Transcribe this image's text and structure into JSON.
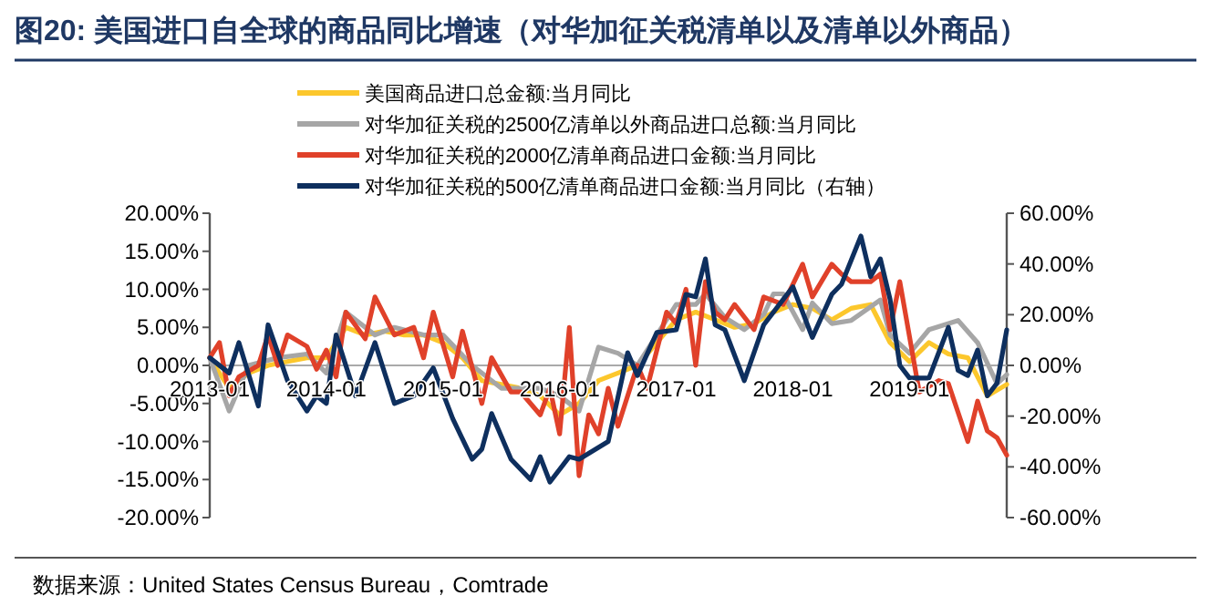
{
  "chart_data": {
    "type": "line",
    "title": "图20: 美国进口自全球的商品同比增速（对华加征关税清单以及清单以外商品）",
    "annotations": [
      "数据来源：United States Census Bureau，Comtrade"
    ],
    "xlim": [
      "2013-01",
      "2019-11"
    ],
    "xticks": [
      "2013-01",
      "2014-01",
      "2015-01",
      "2016-01",
      "2017-01",
      "2018-01",
      "2019-01"
    ],
    "ylim": [
      -20,
      20
    ],
    "yticks": [
      {
        "value": 20,
        "label": "20.00%"
      },
      {
        "value": 15,
        "label": "15.00%"
      },
      {
        "value": 10,
        "label": "10.00%"
      },
      {
        "value": 5,
        "label": "5.00%"
      },
      {
        "value": 0,
        "label": "0.00%"
      },
      {
        "value": -5,
        "label": "-5.00%"
      },
      {
        "value": -10,
        "label": "-10.00%"
      },
      {
        "value": -15,
        "label": "-15.00%"
      },
      {
        "value": -20,
        "label": "-20.00%"
      }
    ],
    "y2lim": [
      -60,
      60
    ],
    "y2ticks": [
      {
        "value": 60,
        "label": "60.00%"
      },
      {
        "value": 40,
        "label": "40.00%"
      },
      {
        "value": 20,
        "label": "20.00%"
      },
      {
        "value": 0,
        "label": "0.00%"
      },
      {
        "value": -20,
        "label": "-20.00%"
      },
      {
        "value": -40,
        "label": "-40.00%"
      },
      {
        "value": -60,
        "label": "-60.00%"
      }
    ],
    "grid": false,
    "legend": "top",
    "line_style": "solid",
    "marker": "none",
    "series": [
      {
        "name": "美国商品进口总金额:当月同比",
        "color": "#fcc72c",
        "x": [
          "2013-01",
          "2013-03",
          "2013-05",
          "2013-07",
          "2013-09",
          "2013-11",
          "2014-01",
          "2014-03",
          "2014-05",
          "2014-07",
          "2014-09",
          "2014-11",
          "2015-01",
          "2015-03",
          "2015-05",
          "2015-07",
          "2015-09",
          "2015-11",
          "2016-01",
          "2016-03",
          "2016-05",
          "2016-07",
          "2016-09",
          "2016-11",
          "2017-01",
          "2017-03",
          "2017-05",
          "2017-07",
          "2017-09",
          "2017-11",
          "2018-01",
          "2018-03",
          "2018-05",
          "2018-07",
          "2018-09",
          "2018-11",
          "2019-01",
          "2019-03",
          "2019-05",
          "2019-07",
          "2019-09",
          "2019-11"
        ],
        "values": [
          1,
          -3,
          -1,
          0,
          0.5,
          1,
          1,
          5,
          4,
          4.5,
          4,
          4,
          3,
          1,
          -2,
          -2.5,
          -3,
          -4,
          -6.5,
          -5,
          -2,
          -1,
          0,
          3,
          6,
          7,
          6,
          5,
          5.5,
          7,
          8,
          7.5,
          6,
          7.5,
          8,
          3,
          0.5,
          3,
          1.5,
          1,
          -4,
          -2.5
        ]
      },
      {
        "name": "对华加征关税的2500亿清单以外商品进口总额:当月同比",
        "color": "#a6a6a6",
        "x": [
          "2013-01",
          "2013-03",
          "2013-05",
          "2013-08",
          "2013-11",
          "2014-01",
          "2014-03",
          "2014-06",
          "2014-08",
          "2014-11",
          "2015-01",
          "2015-04",
          "2015-07",
          "2015-11",
          "2016-01",
          "2016-03",
          "2016-05",
          "2016-07",
          "2016-09",
          "2016-11",
          "2017-01",
          "2017-03",
          "2017-04",
          "2017-06",
          "2017-08",
          "2017-10",
          "2017-11",
          "2017-12",
          "2018-02",
          "2018-03",
          "2018-05",
          "2018-07",
          "2018-10",
          "2018-11",
          "2019-01",
          "2019-03",
          "2019-06",
          "2019-08",
          "2019-10",
          "2019-11"
        ],
        "values": [
          1,
          -6,
          0,
          1,
          1.5,
          -1,
          7,
          4,
          5,
          4,
          4,
          0,
          -3,
          -3,
          -4,
          -6,
          2.4,
          1.6,
          0,
          4,
          8,
          8,
          9.4,
          6.3,
          4.7,
          6.7,
          9.4,
          9.4,
          4.7,
          8.2,
          5.5,
          5.9,
          8.6,
          4,
          1.6,
          4.7,
          5.9,
          3,
          -2.4,
          -1.2
        ]
      },
      {
        "name": "对华加征关税的2000亿清单商品进口金额:当月同比",
        "color": "#e0412a",
        "x": [
          "2013-01",
          "2013-02",
          "2013-03",
          "2013-04",
          "2013-06",
          "2013-07",
          "2013-08",
          "2013-09",
          "2013-11",
          "2013-12",
          "2014-01",
          "2014-02",
          "2014-03",
          "2014-05",
          "2014-06",
          "2014-08",
          "2014-10",
          "2014-11",
          "2014-12",
          "2015-02",
          "2015-03",
          "2015-05",
          "2015-06",
          "2015-08",
          "2015-09",
          "2015-11",
          "2015-12",
          "2016-01",
          "2016-02",
          "2016-03",
          "2016-04",
          "2016-05",
          "2016-06",
          "2016-07",
          "2016-09",
          "2016-10",
          "2016-12",
          "2017-01",
          "2017-02",
          "2017-03",
          "2017-04",
          "2017-05",
          "2017-06",
          "2017-07",
          "2017-09",
          "2017-10",
          "2017-12",
          "2018-02",
          "2018-03",
          "2018-05",
          "2018-06",
          "2018-07",
          "2018-09",
          "2018-10",
          "2018-11",
          "2018-12",
          "2019-02",
          "2019-04",
          "2019-05",
          "2019-07",
          "2019-08",
          "2019-09",
          "2019-10",
          "2019-11"
        ],
        "values": [
          1,
          3,
          -4,
          -1.5,
          0,
          4,
          0,
          4,
          2.5,
          -0.5,
          2,
          -1.5,
          7,
          3.5,
          9,
          4,
          5,
          1,
          7,
          -1.5,
          4.5,
          -5,
          1,
          -3.5,
          -3.5,
          -6.5,
          -3,
          -9,
          5,
          -14.5,
          -6.5,
          -9,
          -3,
          -8,
          0,
          -3,
          7,
          5.5,
          10,
          0,
          11,
          7,
          6,
          8,
          4.7,
          9,
          8,
          13.3,
          9,
          13.3,
          12,
          11,
          11,
          12,
          4.7,
          11,
          -3.5,
          -2,
          -2.4,
          -10,
          -4.7,
          -8.6,
          -9.5,
          -11.8
        ]
      },
      {
        "name": "对华加征关税的500亿清单商品进口金额:当月同比（右轴）",
        "color": "#0e2f5e",
        "axis": "y2",
        "x": [
          "2013-01",
          "2013-03",
          "2013-04",
          "2013-06",
          "2013-07",
          "2013-09",
          "2013-11",
          "2013-12",
          "2014-01",
          "2014-02",
          "2014-04",
          "2014-06",
          "2014-08",
          "2014-10",
          "2014-12",
          "2015-02",
          "2015-04",
          "2015-05",
          "2015-06",
          "2015-08",
          "2015-10",
          "2015-11",
          "2015-12",
          "2016-02",
          "2016-03",
          "2016-06",
          "2016-08",
          "2016-09",
          "2016-11",
          "2017-01",
          "2017-02",
          "2017-03",
          "2017-04",
          "2017-05",
          "2017-06",
          "2017-08",
          "2017-10",
          "2017-12",
          "2018-01",
          "2018-03",
          "2018-05",
          "2018-06",
          "2018-08",
          "2018-09",
          "2018-10",
          "2018-11",
          "2018-12",
          "2019-01",
          "2019-03",
          "2019-05",
          "2019-06",
          "2019-07",
          "2019-08",
          "2019-09",
          "2019-10",
          "2019-11"
        ],
        "values": [
          3,
          -3,
          9,
          -16,
          16,
          -6,
          -18,
          -12,
          -15,
          12,
          -12,
          9,
          -15,
          -12,
          -1,
          -21,
          -37,
          -33,
          -19,
          -37,
          -45,
          -36,
          -46,
          -36,
          -37,
          -30,
          5,
          -4,
          13,
          14,
          28,
          27,
          42,
          16,
          14,
          -6,
          16,
          26,
          31,
          11,
          28,
          32,
          51,
          35,
          42,
          26,
          0,
          -5,
          -5,
          15,
          -2,
          -4,
          6,
          -12,
          -7,
          14
        ]
      }
    ]
  }
}
